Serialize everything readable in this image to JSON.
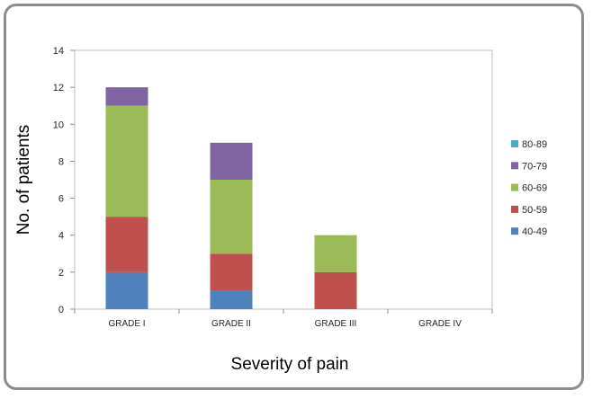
{
  "chart_data": {
    "type": "bar",
    "stacked": true,
    "categories": [
      "GRADE I",
      "GRADE II",
      "GRADE III",
      "GRADE IV"
    ],
    "series": [
      {
        "name": "40-49",
        "color": "#4f81bd",
        "values": [
          2,
          1,
          0,
          0
        ]
      },
      {
        "name": "50-59",
        "color": "#c0504d",
        "values": [
          3,
          2,
          2,
          0
        ]
      },
      {
        "name": "60-69",
        "color": "#9bbb59",
        "values": [
          6,
          4,
          2,
          0
        ]
      },
      {
        "name": "70-79",
        "color": "#8064a2",
        "values": [
          1,
          2,
          0,
          0
        ]
      },
      {
        "name": "80-89",
        "color": "#4bacc6",
        "values": [
          0,
          0,
          0,
          0
        ]
      }
    ],
    "xlabel": "Severity of pain",
    "ylabel": "No. of patients",
    "ylim": [
      0,
      14
    ],
    "yticks": [
      0,
      2,
      4,
      6,
      8,
      10,
      12,
      14
    ],
    "grid": false,
    "legend_position": "right"
  }
}
